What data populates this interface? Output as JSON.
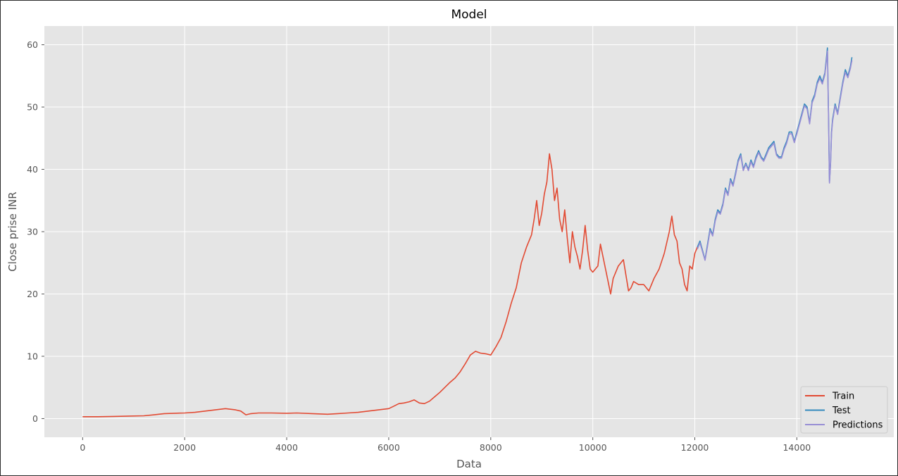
{
  "chart_data": {
    "type": "line",
    "title": "Model",
    "xlabel": "Data",
    "ylabel": "Close prise INR",
    "xlim": [
      -750,
      15900
    ],
    "ylim": [
      -3,
      63
    ],
    "xticks": [
      0,
      2000,
      4000,
      6000,
      8000,
      10000,
      12000,
      14000
    ],
    "yticks": [
      0,
      10,
      20,
      30,
      40,
      50,
      60
    ],
    "grid": true,
    "legend_position": "bottom-right",
    "colors": {
      "background": "#E5E5E5",
      "grid": "#FFFFFF",
      "Train": "#E24A33",
      "Test": "#348ABD",
      "Predictions": "#988ED5"
    },
    "series": [
      {
        "name": "Train",
        "x": [
          0,
          300,
          600,
          900,
          1200,
          1400,
          1600,
          1800,
          2000,
          2200,
          2400,
          2600,
          2800,
          3000,
          3100,
          3200,
          3300,
          3450,
          3700,
          4000,
          4200,
          4500,
          4800,
          5000,
          5200,
          5400,
          5600,
          5800,
          6000,
          6100,
          6200,
          6300,
          6400,
          6500,
          6600,
          6700,
          6800,
          6900,
          7000,
          7100,
          7200,
          7300,
          7400,
          7500,
          7600,
          7700,
          7800,
          7900,
          8000,
          8100,
          8200,
          8300,
          8400,
          8500,
          8600,
          8700,
          8800,
          8850,
          8900,
          8950,
          9000,
          9050,
          9100,
          9150,
          9200,
          9250,
          9300,
          9350,
          9400,
          9450,
          9500,
          9550,
          9600,
          9650,
          9700,
          9750,
          9800,
          9850,
          9900,
          9950,
          10000,
          10100,
          10150,
          10200,
          10300,
          10350,
          10400,
          10500,
          10600,
          10700,
          10750,
          10800,
          10900,
          11000,
          11100,
          11200,
          11300,
          11400,
          11500,
          11550,
          11600,
          11650,
          11700,
          11750,
          11800,
          11850,
          11900,
          11950,
          12000,
          12050
        ],
        "values": [
          0.3,
          0.3,
          0.35,
          0.4,
          0.45,
          0.6,
          0.8,
          0.85,
          0.9,
          1.0,
          1.2,
          1.4,
          1.6,
          1.4,
          1.2,
          0.6,
          0.8,
          0.9,
          0.9,
          0.85,
          0.9,
          0.8,
          0.7,
          0.8,
          0.9,
          1.0,
          1.2,
          1.4,
          1.6,
          2.0,
          2.4,
          2.5,
          2.7,
          3.0,
          2.5,
          2.4,
          2.8,
          3.5,
          4.2,
          5.0,
          5.8,
          6.5,
          7.5,
          8.8,
          10.2,
          10.8,
          10.5,
          10.4,
          10.2,
          11.5,
          13.0,
          15.5,
          18.5,
          21.0,
          25.0,
          27.5,
          29.5,
          32.0,
          35.0,
          31.0,
          33.0,
          36.0,
          38.0,
          42.5,
          40.0,
          35.0,
          37.0,
          32.0,
          30.0,
          33.5,
          29.0,
          25.0,
          30.0,
          27.5,
          26.0,
          24.0,
          27.0,
          31.0,
          27.0,
          24.0,
          23.5,
          24.5,
          28.0,
          26.0,
          22.0,
          20.0,
          22.5,
          24.5,
          25.5,
          20.5,
          21.0,
          22.0,
          21.5,
          21.5,
          20.5,
          22.5,
          24.0,
          26.5,
          30.0,
          32.5,
          29.5,
          28.5,
          25.0,
          24.0,
          21.5,
          20.5,
          24.5,
          24.0,
          26.5,
          27.5
        ]
      },
      {
        "name": "Test",
        "x": [
          12050,
          12100,
          12150,
          12200,
          12250,
          12300,
          12350,
          12400,
          12450,
          12500,
          12550,
          12600,
          12650,
          12700,
          12750,
          12800,
          12850,
          12900,
          12950,
          13000,
          13050,
          13100,
          13150,
          13200,
          13250,
          13300,
          13350,
          13400,
          13450,
          13500,
          13550,
          13600,
          13650,
          13700,
          13750,
          13800,
          13850,
          13900,
          13950,
          14000,
          14050,
          14100,
          14150,
          14200,
          14250,
          14300,
          14350,
          14400,
          14450,
          14500,
          14550,
          14600,
          14620,
          14640,
          14660,
          14680,
          14700,
          14750,
          14800,
          14850,
          14900,
          14950,
          15000,
          15050,
          15080
        ],
        "values": [
          27.5,
          28.5,
          27.0,
          25.5,
          28.0,
          30.5,
          29.5,
          32.0,
          33.5,
          33.0,
          34.5,
          37.0,
          36.0,
          38.5,
          37.5,
          39.5,
          41.5,
          42.5,
          40.0,
          41.0,
          40.0,
          41.5,
          40.5,
          42.0,
          43.0,
          42.0,
          41.5,
          42.5,
          43.5,
          44.0,
          44.5,
          42.5,
          42.0,
          42.0,
          43.5,
          44.5,
          46.0,
          46.0,
          44.5,
          46.0,
          47.5,
          49.0,
          50.5,
          50.0,
          47.5,
          51.0,
          52.0,
          54.0,
          55.0,
          54.0,
          55.5,
          59.5,
          49.0,
          38.0,
          41.0,
          46.0,
          48.0,
          50.5,
          49.0,
          51.5,
          54.0,
          56.0,
          55.0,
          56.5,
          58.0
        ]
      },
      {
        "name": "Predictions",
        "x": [
          12050,
          12100,
          12150,
          12200,
          12250,
          12300,
          12350,
          12400,
          12450,
          12500,
          12550,
          12600,
          12650,
          12700,
          12750,
          12800,
          12850,
          12900,
          12950,
          13000,
          13050,
          13100,
          13150,
          13200,
          13250,
          13300,
          13350,
          13400,
          13450,
          13500,
          13550,
          13600,
          13650,
          13700,
          13750,
          13800,
          13850,
          13900,
          13950,
          14000,
          14050,
          14100,
          14150,
          14200,
          14250,
          14300,
          14350,
          14400,
          14450,
          14500,
          14550,
          14600,
          14620,
          14640,
          14660,
          14680,
          14700,
          14750,
          14800,
          14850,
          14900,
          14950,
          15000,
          15050,
          15080
        ],
        "values": [
          27.2,
          28.2,
          26.8,
          25.4,
          27.7,
          30.2,
          29.3,
          31.7,
          33.2,
          32.8,
          34.2,
          36.7,
          35.8,
          38.2,
          37.3,
          39.2,
          41.2,
          42.2,
          39.8,
          40.8,
          39.8,
          41.2,
          40.3,
          41.7,
          42.7,
          41.8,
          41.3,
          42.2,
          43.2,
          43.7,
          44.2,
          42.3,
          41.8,
          41.8,
          43.2,
          44.2,
          45.7,
          45.7,
          44.3,
          45.7,
          47.2,
          48.7,
          50.2,
          49.7,
          47.3,
          50.7,
          51.7,
          53.7,
          54.6,
          53.7,
          55.2,
          59.0,
          48.7,
          37.8,
          40.8,
          45.7,
          47.7,
          50.2,
          48.8,
          51.2,
          53.7,
          55.6,
          54.7,
          56.2,
          57.5
        ]
      }
    ]
  }
}
